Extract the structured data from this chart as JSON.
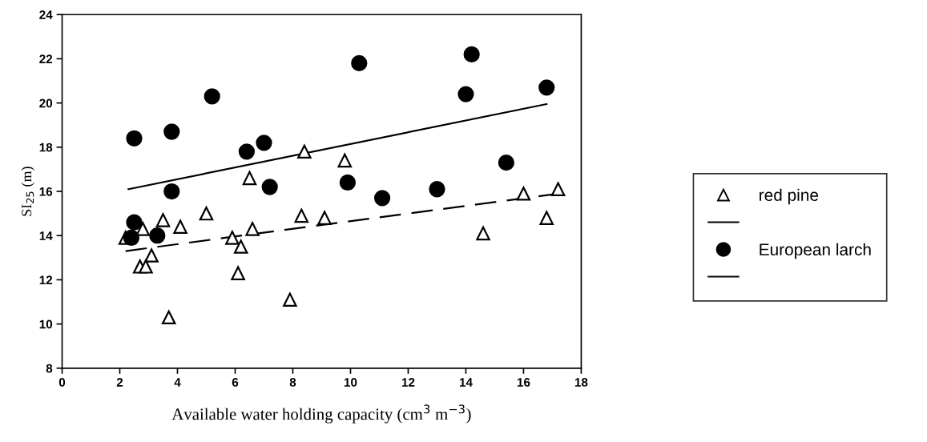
{
  "chart_data": {
    "type": "scatter",
    "xlabel": "Available water holding capacity (cm$^{3}$ m$^{−3}$)",
    "ylabel": "SI$_{25}$ (m)",
    "xlim": [
      0,
      18
    ],
    "xticks": [
      0,
      2,
      4,
      6,
      8,
      10,
      12,
      14,
      16,
      18
    ],
    "ylim": [
      8,
      24
    ],
    "yticks": [
      8,
      10,
      12,
      14,
      16,
      18,
      20,
      22,
      24
    ],
    "grid": false,
    "legend": "right",
    "series": [
      {
        "name": "red pine",
        "marker": "triangle",
        "color": "#000000",
        "x": [
          2.2,
          2.7,
          2.8,
          2.9,
          3.1,
          3.5,
          3.7,
          4.1,
          5.0,
          5.9,
          6.1,
          6.2,
          6.5,
          6.6,
          7.9,
          8.3,
          8.4,
          9.1,
          9.8,
          14.6,
          16.0,
          16.8,
          17.2
        ],
        "values": [
          13.9,
          12.6,
          14.3,
          12.6,
          13.1,
          14.7,
          10.3,
          14.4,
          15.0,
          13.9,
          12.3,
          13.5,
          16.6,
          14.3,
          11.1,
          14.9,
          17.8,
          14.8,
          17.4,
          14.1,
          15.9,
          14.8,
          16.1
        ]
      },
      {
        "type": "line",
        "line_style": "dashed",
        "color": "#000000",
        "x": [
          2.2,
          17.2
        ],
        "values": [
          13.3,
          15.9
        ]
      },
      {
        "name": "European larch",
        "marker": "circle",
        "color": "#000000",
        "x": [
          2.4,
          2.5,
          2.5,
          3.3,
          3.8,
          3.8,
          5.2,
          6.4,
          7.0,
          7.2,
          9.9,
          10.3,
          11.1,
          13.0,
          14.0,
          14.2,
          15.4,
          16.8
        ],
        "values": [
          13.9,
          18.4,
          14.6,
          14.0,
          18.7,
          16.0,
          20.3,
          17.8,
          18.2,
          16.2,
          16.4,
          21.8,
          15.7,
          16.1,
          20.4,
          22.2,
          17.3,
          20.7
        ]
      },
      {
        "type": "line",
        "line_style": "solid",
        "color": "#000000",
        "x": [
          2.3,
          16.8
        ],
        "values": [
          16.1,
          19.95
        ]
      }
    ]
  }
}
